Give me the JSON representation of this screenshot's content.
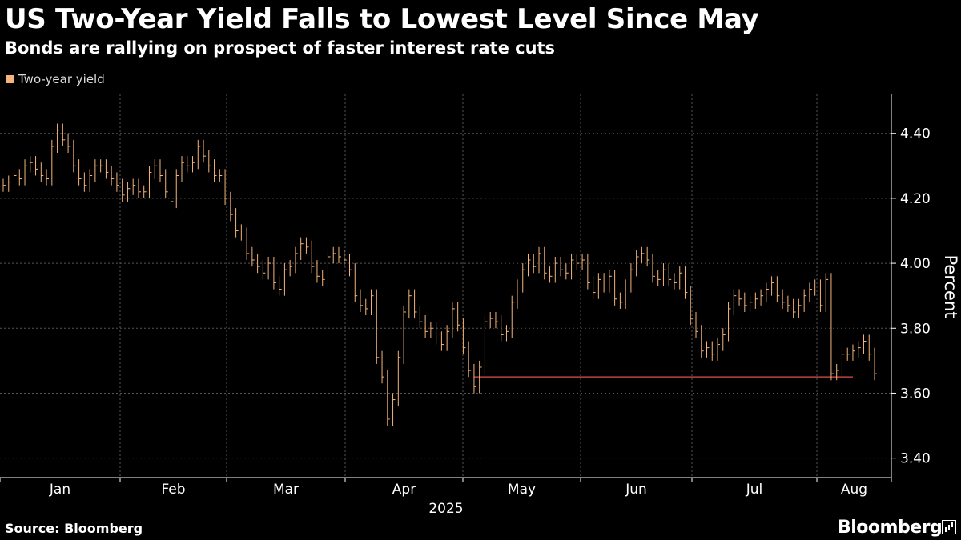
{
  "title": "US Two-Year Yield Falls to Lowest Level Since May",
  "subtitle": "Bonds are rallying on prospect of faster interest rate cuts",
  "source": "Source: Bloomberg",
  "brand": "Bloomberg",
  "colors": {
    "background": "#000000",
    "series": "#f5b57a",
    "reference_line": "#e05050",
    "grid": "#555555"
  },
  "chart_data": {
    "type": "line",
    "title": "US Two-Year Yield Falls to Lowest Level Since May",
    "subtitle": "Bonds are rallying on prospect of faster interest rate cuts",
    "xlabel": "2025",
    "ylabel": "Percent",
    "ylim": [
      3.34,
      4.52
    ],
    "y_ticks": [
      "3.40",
      "3.60",
      "3.80",
      "4.00",
      "4.20",
      "4.40"
    ],
    "y_tick_values": [
      3.4,
      3.6,
      3.8,
      4.0,
      4.2,
      4.4
    ],
    "x_ticks": [
      "Jan",
      "Feb",
      "Mar",
      "Apr",
      "May",
      "Jun",
      "Jul",
      "Aug"
    ],
    "year_label": "2025",
    "axis_side": "right",
    "grid": true,
    "legend_position": "top-left",
    "reference_line": {
      "y": 3.65,
      "from_index": 87,
      "to_index": 157
    },
    "series": [
      {
        "name": "Two-year yield",
        "style": "high-low-close bars",
        "values": [
          4.24,
          4.25,
          4.27,
          4.26,
          4.3,
          4.31,
          4.29,
          4.27,
          4.26,
          4.36,
          4.41,
          4.38,
          4.36,
          4.3,
          4.26,
          4.24,
          4.27,
          4.3,
          4.3,
          4.28,
          4.26,
          4.24,
          4.21,
          4.23,
          4.24,
          4.22,
          4.22,
          4.28,
          4.3,
          4.27,
          4.22,
          4.19,
          4.27,
          4.31,
          4.3,
          4.31,
          4.36,
          4.33,
          4.3,
          4.27,
          4.27,
          4.2,
          4.15,
          4.1,
          4.09,
          4.03,
          4.01,
          3.99,
          3.97,
          4.0,
          3.94,
          3.92,
          3.98,
          3.99,
          4.03,
          4.06,
          4.05,
          3.99,
          3.96,
          3.95,
          4.02,
          4.03,
          4.02,
          4.01,
          3.98,
          3.9,
          3.87,
          3.86,
          3.9,
          3.71,
          3.65,
          3.52,
          3.58,
          3.71,
          3.85,
          3.9,
          3.85,
          3.82,
          3.79,
          3.8,
          3.77,
          3.75,
          3.79,
          3.86,
          3.81,
          3.74,
          3.67,
          3.62,
          3.68,
          3.82,
          3.83,
          3.82,
          3.78,
          3.79,
          3.88,
          3.93,
          3.98,
          4.01,
          3.99,
          4.03,
          3.97,
          3.96,
          4.0,
          3.98,
          3.97,
          4.01,
          4.0,
          4.01,
          3.94,
          3.91,
          3.95,
          3.93,
          3.96,
          3.89,
          3.88,
          3.93,
          3.98,
          4.02,
          4.03,
          4.01,
          3.96,
          3.95,
          3.98,
          3.95,
          3.94,
          3.97,
          3.91,
          3.83,
          3.79,
          3.73,
          3.74,
          3.72,
          3.75,
          3.78,
          3.86,
          3.9,
          3.89,
          3.87,
          3.88,
          3.89,
          3.9,
          3.92,
          3.94,
          3.9,
          3.88,
          3.87,
          3.85,
          3.87,
          3.9,
          3.92,
          3.93,
          3.87,
          3.95,
          3.66,
          3.67,
          3.72,
          3.72,
          3.73,
          3.74,
          3.76,
          3.72,
          3.66
        ]
      }
    ]
  }
}
